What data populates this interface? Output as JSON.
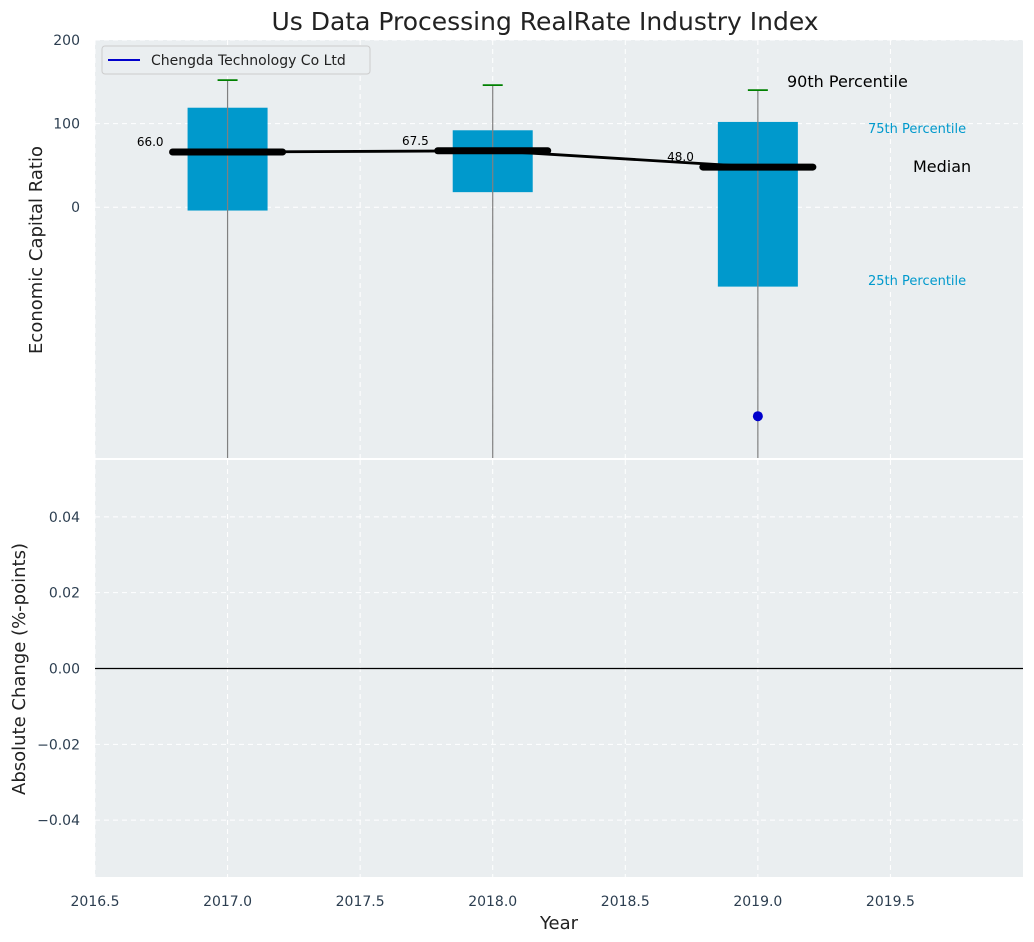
{
  "chart_data": {
    "type": "box",
    "title": "Us Data Processing RealRate Industry Index",
    "xlabel": "Year",
    "xlim": [
      2016.5,
      2020.0
    ],
    "xticks": [
      "2016.5",
      "2017.0",
      "2017.5",
      "2018.0",
      "2018.5",
      "2019.0",
      "2019.5"
    ],
    "xtick_values": [
      2016.5,
      2017.0,
      2017.5,
      2018.0,
      2018.5,
      2019.0,
      2019.5
    ],
    "grid": true,
    "top_panel": {
      "ylabel": "Economic Capital Ratio",
      "ylim": [
        -300,
        200
      ],
      "yticks": [
        "0",
        "100",
        "200"
      ],
      "ytick_values": [
        0,
        100,
        200
      ],
      "box_color": "#0099cc",
      "whisker_color": "#808080",
      "cap_color": "#008000",
      "median_line_color": "#000000",
      "boxes": [
        {
          "x": 2017.0,
          "q1": -4,
          "q3": 119,
          "median": 66.0,
          "median_label": "66.0",
          "p90": 152
        },
        {
          "x": 2018.0,
          "q1": 18,
          "q3": 92,
          "median": 67.5,
          "median_label": "67.5",
          "p90": 146
        },
        {
          "x": 2019.0,
          "q1": -95,
          "q3": 102,
          "median": 48.0,
          "median_label": "48.0",
          "p90": 140
        }
      ],
      "company_points": [
        {
          "x": 2019.0,
          "y": -250
        }
      ],
      "legend": {
        "entries": [
          {
            "label": "Chengda Technology Co Ltd",
            "color": "#0000cc"
          }
        ],
        "placement": "upper-left"
      },
      "annotations": {
        "p90": {
          "text": "90th Percentile",
          "color": "#000000"
        },
        "p75": {
          "text": "75th Percentile",
          "color": "#0099cc"
        },
        "median": {
          "text": "Median",
          "color": "#000000"
        },
        "p25": {
          "text": "25th Percentile",
          "color": "#0099cc"
        }
      }
    },
    "bottom_panel": {
      "ylabel": "Absolute Change (%-points)",
      "ylim": [
        -0.055,
        0.055
      ],
      "yticks": [
        "−0.04",
        "−0.02",
        "0.00",
        "0.02",
        "0.04"
      ],
      "ytick_values": [
        -0.04,
        -0.02,
        0.0,
        0.02,
        0.04
      ],
      "zero_line": true
    }
  }
}
